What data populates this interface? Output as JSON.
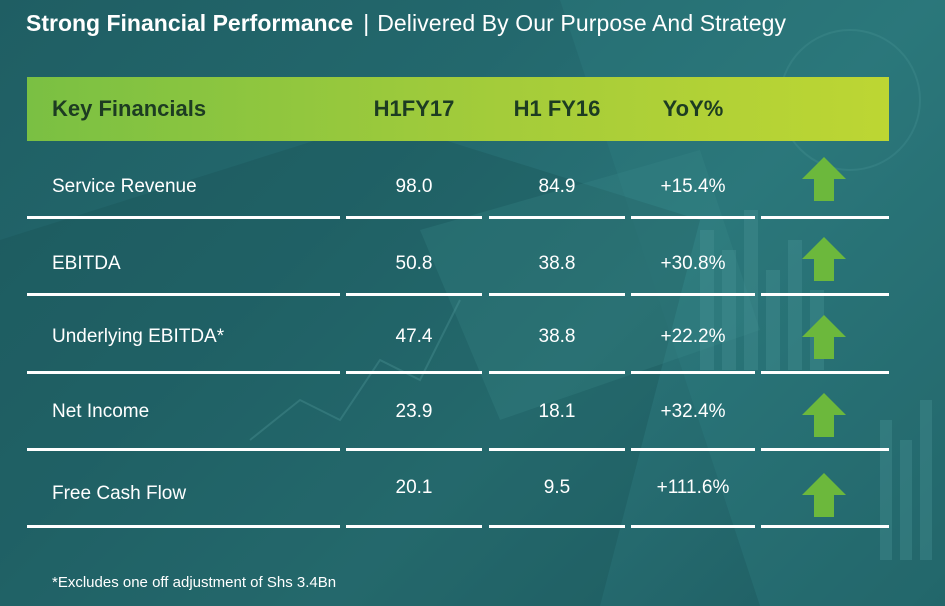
{
  "title": {
    "bold": "Strong Financial Performance",
    "separator": "|",
    "subtitle": "Delivered By Our Purpose And Strategy"
  },
  "table": {
    "headers": [
      "Key Financials",
      "H1FY17",
      "H1 FY16",
      "YoY%"
    ],
    "rows": [
      {
        "label": "Service Revenue",
        "h1fy17": "98.0",
        "h1fy16": "84.9",
        "yoy": "+15.4%",
        "trend": "up"
      },
      {
        "label": "EBITDA",
        "h1fy17": "50.8",
        "h1fy16": "38.8",
        "yoy": "+30.8%",
        "trend": "up"
      },
      {
        "label": "Underlying EBITDA*",
        "h1fy17": "47.4",
        "h1fy16": "38.8",
        "yoy": "+22.2%",
        "trend": "up"
      },
      {
        "label": "Net Income",
        "h1fy17": "23.9",
        "h1fy16": "18.1",
        "yoy": "+32.4%",
        "trend": "up"
      },
      {
        "label": "Free Cash Flow",
        "h1fy17": "20.1",
        "h1fy16": "9.5",
        "yoy": "+111.6%",
        "trend": "up"
      }
    ]
  },
  "footnote": "*Excludes one off adjustment of Shs 3.4Bn",
  "colors": {
    "background": "#23686d",
    "header_band_start": "#7ac043",
    "header_band_end": "#bdd633",
    "header_text": "#1d3c22",
    "arrow": "#6cb83c",
    "rule": "#ffffff"
  },
  "icons": {
    "trend_up": "up-arrow-icon"
  }
}
